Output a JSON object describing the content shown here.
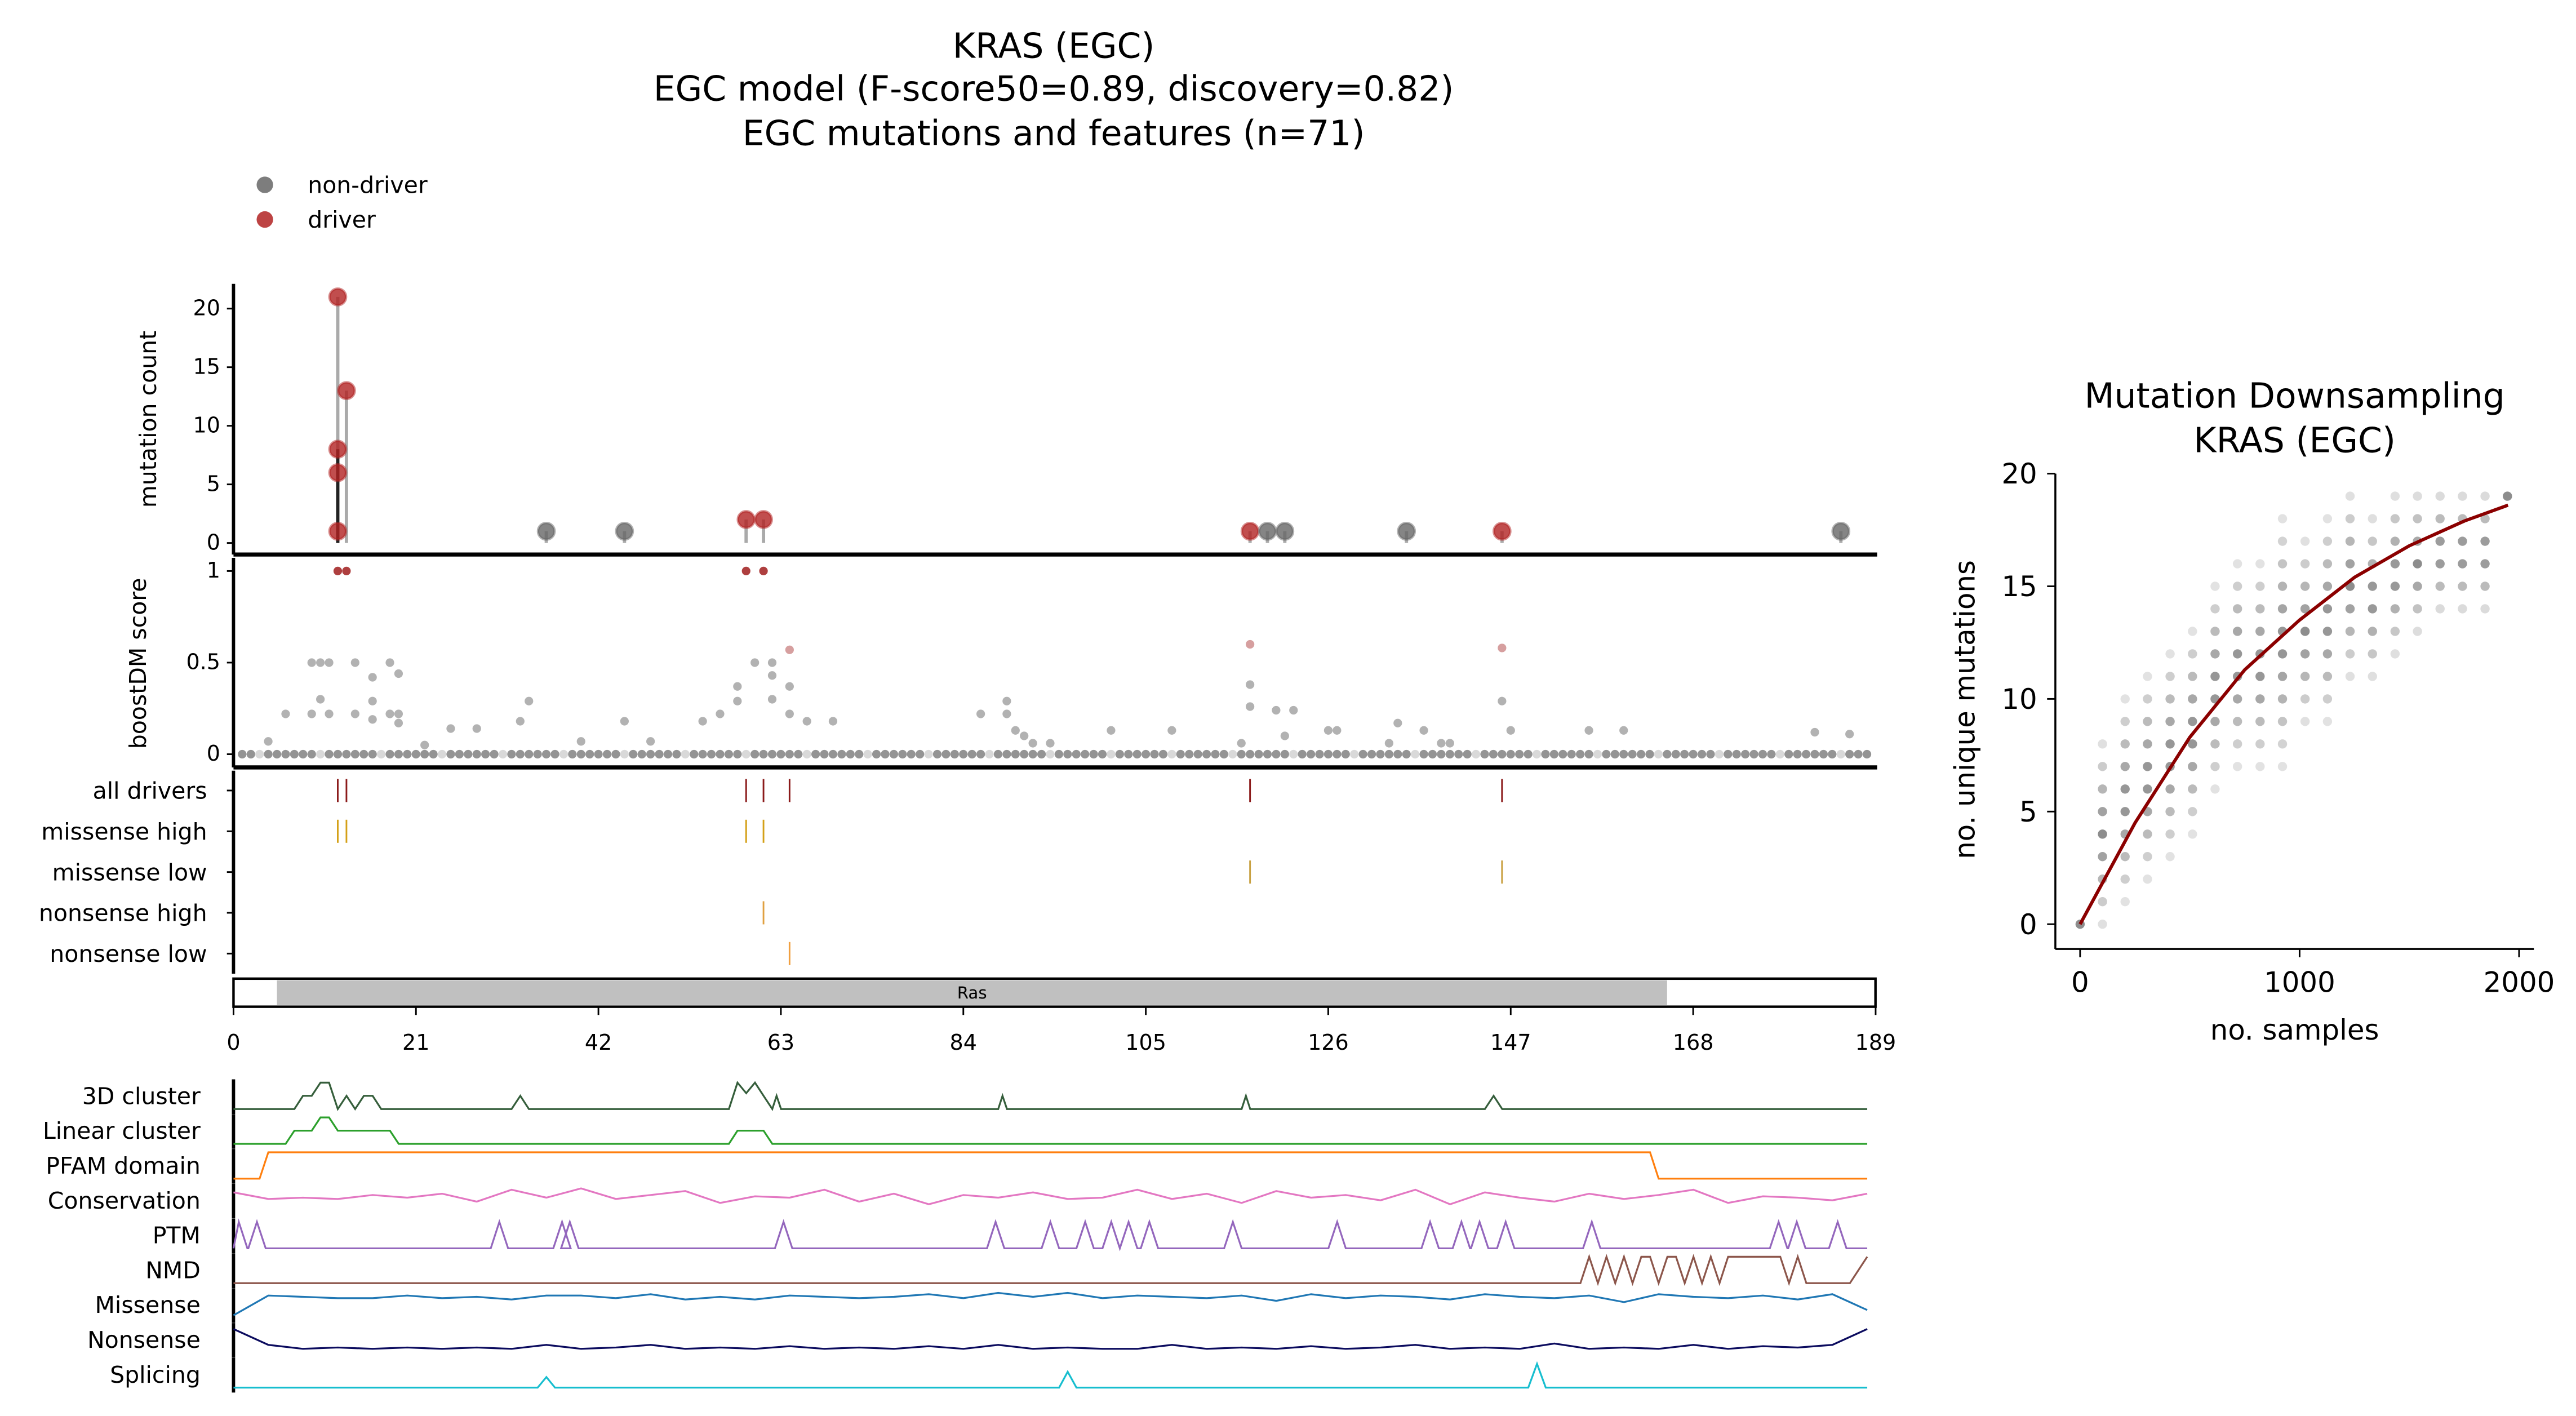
{
  "chart_data": [
    {
      "type": "scatter",
      "name": "lollipop",
      "title": [
        "KRAS (EGC)",
        "EGC model (F-score50=0.89, discovery=0.82)",
        "EGC mutations and features (n=71)"
      ],
      "legend": [
        {
          "label": "non-driver",
          "color": "#666666"
        },
        {
          "label": "driver",
          "color": "#b22222"
        }
      ],
      "legend_placement": "top-left",
      "ylabel": "mutation count",
      "ylim": [
        0,
        22
      ],
      "yticks": [
        0,
        5,
        10,
        15,
        20
      ],
      "xlim": [
        0,
        189
      ],
      "points": [
        {
          "pos": 12,
          "count": 21,
          "driver": true
        },
        {
          "pos": 12,
          "count": 8,
          "driver": true
        },
        {
          "pos": 12,
          "count": 6,
          "driver": true
        },
        {
          "pos": 12,
          "count": 1,
          "driver": true
        },
        {
          "pos": 13,
          "count": 13,
          "driver": true
        },
        {
          "pos": 36,
          "count": 1,
          "driver": false
        },
        {
          "pos": 45,
          "count": 1,
          "driver": false
        },
        {
          "pos": 59,
          "count": 2,
          "driver": true
        },
        {
          "pos": 61,
          "count": 2,
          "driver": true
        },
        {
          "pos": 117,
          "count": 1,
          "driver": true
        },
        {
          "pos": 119,
          "count": 1,
          "driver": false
        },
        {
          "pos": 121,
          "count": 1,
          "driver": false
        },
        {
          "pos": 135,
          "count": 1,
          "driver": false
        },
        {
          "pos": 146,
          "count": 1,
          "driver": true
        },
        {
          "pos": 185,
          "count": 1,
          "driver": false
        }
      ]
    },
    {
      "type": "scatter",
      "name": "boostdm",
      "ylabel": "boostDM score",
      "ylim": [
        0,
        1
      ],
      "yticks": [
        "0",
        "0.5",
        "1"
      ],
      "baseline_range": [
        1,
        188
      ],
      "points": [
        [
          12,
          1,
          1
        ],
        [
          13,
          1,
          1
        ],
        [
          59,
          1,
          1
        ],
        [
          61,
          1,
          1
        ],
        [
          4,
          0.07,
          0
        ],
        [
          6,
          0.22,
          0
        ],
        [
          9,
          0.5,
          0
        ],
        [
          10,
          0.5,
          0
        ],
        [
          11,
          0.5,
          0
        ],
        [
          10,
          0.3,
          0
        ],
        [
          9,
          0.22,
          0
        ],
        [
          11,
          0.22,
          0
        ],
        [
          14,
          0.5,
          0
        ],
        [
          14,
          0.22,
          0
        ],
        [
          16,
          0.42,
          0
        ],
        [
          16,
          0.29,
          0
        ],
        [
          16,
          0.19,
          0
        ],
        [
          18,
          0.5,
          0
        ],
        [
          18,
          0.22,
          0
        ],
        [
          19,
          0.44,
          0
        ],
        [
          19,
          0.22,
          0
        ],
        [
          19,
          0.17,
          0
        ],
        [
          22,
          0.05,
          0
        ],
        [
          25,
          0.14,
          0
        ],
        [
          28,
          0.14,
          0
        ],
        [
          33,
          0.18,
          0
        ],
        [
          34,
          0.29,
          0
        ],
        [
          40,
          0.07,
          0
        ],
        [
          45,
          0.18,
          0
        ],
        [
          48,
          0.07,
          0
        ],
        [
          54,
          0.18,
          0
        ],
        [
          56,
          0.22,
          0
        ],
        [
          58,
          0.37,
          0
        ],
        [
          58,
          0.29,
          0
        ],
        [
          60,
          0.5,
          0
        ],
        [
          62,
          0.5,
          0
        ],
        [
          62,
          0.43,
          0
        ],
        [
          62,
          0.3,
          0
        ],
        [
          64,
          0.57,
          1
        ],
        [
          64,
          0.37,
          0
        ],
        [
          64,
          0.22,
          0
        ],
        [
          66,
          0.18,
          0
        ],
        [
          69,
          0.18,
          0
        ],
        [
          86,
          0.22,
          0
        ],
        [
          89,
          0.29,
          0
        ],
        [
          89,
          0.22,
          0
        ],
        [
          90,
          0.13,
          0
        ],
        [
          91,
          0.1,
          0
        ],
        [
          92,
          0.06,
          0
        ],
        [
          94,
          0.06,
          0
        ],
        [
          101,
          0.13,
          0
        ],
        [
          108,
          0.13,
          0
        ],
        [
          116,
          0.06,
          0
        ],
        [
          117,
          0.6,
          1
        ],
        [
          117,
          0.38,
          0
        ],
        [
          117,
          0.26,
          0
        ],
        [
          120,
          0.24,
          0
        ],
        [
          122,
          0.24,
          0
        ],
        [
          121,
          0.1,
          0
        ],
        [
          126,
          0.13,
          0
        ],
        [
          127,
          0.13,
          0
        ],
        [
          133,
          0.06,
          0
        ],
        [
          134,
          0.17,
          0
        ],
        [
          137,
          0.13,
          0
        ],
        [
          139,
          0.06,
          0
        ],
        [
          140,
          0.06,
          0
        ],
        [
          146,
          0.58,
          1
        ],
        [
          146,
          0.29,
          0
        ],
        [
          147,
          0.13,
          0
        ],
        [
          156,
          0.13,
          0
        ],
        [
          160,
          0.13,
          0
        ],
        [
          182,
          0.12,
          0
        ],
        [
          186,
          0.11,
          0
        ]
      ]
    },
    {
      "type": "table",
      "name": "feature-ticks",
      "rows": [
        {
          "label": "all drivers",
          "color": "#8b1a1a",
          "positions": [
            12,
            13,
            59,
            61,
            64,
            117,
            146
          ]
        },
        {
          "label": "missense high",
          "color": "#d4a017",
          "positions": [
            12,
            13,
            59,
            61
          ]
        },
        {
          "label": "missense low",
          "color": "#c8a040",
          "positions": [
            117,
            146
          ]
        },
        {
          "label": "nonsense high",
          "color": "#e0a040",
          "positions": [
            61
          ]
        },
        {
          "label": "nonsense low",
          "color": "#f0a040",
          "positions": [
            64
          ]
        }
      ]
    },
    {
      "type": "bar",
      "name": "domains",
      "domains": [
        {
          "label": "Ras",
          "start": 5,
          "end": 165
        }
      ],
      "xticks": [
        0,
        21,
        42,
        63,
        84,
        105,
        126,
        147,
        168,
        189
      ]
    },
    {
      "type": "line",
      "name": "feature-tracks",
      "tracks": [
        {
          "label": "3D cluster",
          "color": "#355e3b",
          "points": [
            [
              0,
              0
            ],
            [
              7,
              0
            ],
            [
              8,
              0.5
            ],
            [
              9,
              0.5
            ],
            [
              10,
              1
            ],
            [
              11,
              1
            ],
            [
              12,
              0
            ],
            [
              13,
              0.5
            ],
            [
              14,
              0
            ],
            [
              15,
              0.5
            ],
            [
              16,
              0.5
            ],
            [
              17,
              0
            ],
            [
              32,
              0
            ],
            [
              33,
              0.5
            ],
            [
              34,
              0
            ],
            [
              57,
              0
            ],
            [
              58,
              1
            ],
            [
              59,
              0.6
            ],
            [
              60,
              1
            ],
            [
              61,
              0.5
            ],
            [
              62,
              0
            ],
            [
              62.5,
              0.5
            ],
            [
              63,
              0
            ],
            [
              88,
              0
            ],
            [
              88.5,
              0.5
            ],
            [
              89,
              0
            ],
            [
              116,
              0
            ],
            [
              116.5,
              0.5
            ],
            [
              117,
              0
            ],
            [
              144,
              0
            ],
            [
              145,
              0.5
            ],
            [
              146,
              0
            ],
            [
              188,
              0
            ]
          ]
        },
        {
          "label": "Linear cluster",
          "color": "#2ca02c",
          "points": [
            [
              0,
              0
            ],
            [
              6,
              0
            ],
            [
              7,
              0.5
            ],
            [
              9,
              0.5
            ],
            [
              10,
              1
            ],
            [
              11,
              1
            ],
            [
              12,
              0.5
            ],
            [
              18,
              0.5
            ],
            [
              19,
              0
            ],
            [
              57,
              0
            ],
            [
              58,
              0.5
            ],
            [
              61,
              0.5
            ],
            [
              62,
              0
            ],
            [
              188,
              0
            ]
          ]
        },
        {
          "label": "PFAM domain",
          "color": "#ff7f0e",
          "points": [
            [
              0,
              0
            ],
            [
              3,
              0
            ],
            [
              4,
              1
            ],
            [
              163,
              1
            ],
            [
              164,
              0
            ],
            [
              188,
              0
            ]
          ]
        },
        {
          "label": "Conservation",
          "color": "#e377c2",
          "series": [
            0.8,
            0.55,
            0.6,
            0.55,
            0.7,
            0.6,
            0.75,
            0.45,
            0.9,
            0.6,
            0.95,
            0.55,
            0.7,
            0.85,
            0.4,
            0.65,
            0.6,
            0.9,
            0.45,
            0.75,
            0.35,
            0.7,
            0.6,
            0.8,
            0.55,
            0.6,
            0.9,
            0.55,
            0.75,
            0.4,
            0.85,
            0.6,
            0.7,
            0.5,
            0.9,
            0.35,
            0.8,
            0.6,
            0.45,
            0.75,
            0.55,
            0.7,
            0.9,
            0.4,
            0.65,
            0.6,
            0.5,
            0.75
          ]
        },
        {
          "label": "PTM",
          "color": "#9467bd",
          "peaks": [
            0.6,
            2.7,
            30.6,
            37.8,
            38.7,
            63.3,
            87.7,
            94,
            98,
            101,
            103,
            105.4,
            115,
            127,
            137.7,
            141.3,
            143.4,
            146.4,
            156.3,
            177.8,
            179.9,
            184.6
          ]
        },
        {
          "label": "NMD",
          "color": "#8c564b",
          "points": [
            [
              0,
              0
            ],
            [
              155,
              0
            ],
            [
              156,
              1
            ],
            [
              157,
              0
            ],
            [
              158,
              1
            ],
            [
              159,
              0
            ],
            [
              160,
              1
            ],
            [
              161,
              0
            ],
            [
              162,
              1
            ],
            [
              163,
              1
            ],
            [
              164,
              0
            ],
            [
              165,
              1
            ],
            [
              166,
              1
            ],
            [
              167,
              0
            ],
            [
              168,
              1
            ],
            [
              169,
              0
            ],
            [
              170,
              1
            ],
            [
              171,
              0
            ],
            [
              172,
              1
            ],
            [
              178,
              1
            ],
            [
              179,
              0
            ],
            [
              180,
              1
            ],
            [
              181,
              0
            ],
            [
              186,
              0
            ],
            [
              188,
              1
            ]
          ]
        },
        {
          "label": "Missense",
          "color": "#1f77b4",
          "series": [
            0.1,
            0.85,
            0.8,
            0.75,
            0.75,
            0.85,
            0.75,
            0.8,
            0.7,
            0.85,
            0.85,
            0.75,
            0.9,
            0.7,
            0.8,
            0.7,
            0.85,
            0.8,
            0.75,
            0.8,
            0.9,
            0.75,
            0.95,
            0.8,
            0.95,
            0.75,
            0.85,
            0.8,
            0.75,
            0.85,
            0.65,
            0.9,
            0.75,
            0.85,
            0.8,
            0.7,
            0.9,
            0.8,
            0.75,
            0.85,
            0.6,
            0.9,
            0.8,
            0.75,
            0.85,
            0.7,
            0.9,
            0.3
          ]
        },
        {
          "label": "Nonsense",
          "color": "#0b0b5e",
          "series": [
            0.9,
            0.3,
            0.15,
            0.2,
            0.15,
            0.2,
            0.15,
            0.2,
            0.15,
            0.3,
            0.15,
            0.2,
            0.3,
            0.15,
            0.2,
            0.15,
            0.25,
            0.15,
            0.2,
            0.15,
            0.25,
            0.15,
            0.3,
            0.15,
            0.2,
            0.15,
            0.15,
            0.3,
            0.15,
            0.2,
            0.15,
            0.25,
            0.15,
            0.2,
            0.3,
            0.15,
            0.2,
            0.15,
            0.35,
            0.15,
            0.2,
            0.15,
            0.3,
            0.15,
            0.25,
            0.2,
            0.3,
            0.9
          ]
        },
        {
          "label": "Splicing",
          "color": "#17becf",
          "peaks": [
            36,
            96,
            150
          ],
          "peak_heights": [
            0.4,
            0.6,
            0.9
          ]
        }
      ]
    },
    {
      "type": "scatter",
      "name": "downsampling",
      "title": [
        "Mutation Downsampling",
        "KRAS (EGC)"
      ],
      "xlabel": "no. samples",
      "ylabel": "no. unique mutations",
      "xlim": [
        -100,
        2050
      ],
      "ylim": [
        -1,
        20
      ],
      "xticks": [
        0,
        1000,
        2000
      ],
      "yticks": [
        0,
        5,
        10,
        15,
        20
      ],
      "columns": [
        [
          0,
          0,
          0
        ],
        [
          102,
          0,
          8
        ],
        [
          205,
          1,
          10
        ],
        [
          307,
          2,
          11
        ],
        [
          410,
          3,
          12
        ],
        [
          512,
          4,
          13
        ],
        [
          615,
          6,
          15
        ],
        [
          717,
          7,
          16
        ],
        [
          820,
          7,
          16
        ],
        [
          922,
          7,
          18
        ],
        [
          1025,
          9,
          17
        ],
        [
          1127,
          9,
          18
        ],
        [
          1230,
          11,
          19
        ],
        [
          1332,
          11,
          18
        ],
        [
          1435,
          12,
          19
        ],
        [
          1537,
          13,
          19
        ],
        [
          1640,
          14,
          19
        ],
        [
          1742,
          14,
          19
        ],
        [
          1845,
          14,
          19
        ],
        [
          1947,
          19,
          19
        ]
      ],
      "fit_curve": [
        [
          0,
          0
        ],
        [
          250,
          4.5
        ],
        [
          500,
          8.3
        ],
        [
          750,
          11.3
        ],
        [
          1000,
          13.5
        ],
        [
          1250,
          15.4
        ],
        [
          1500,
          16.8
        ],
        [
          1750,
          17.9
        ],
        [
          1950,
          18.6
        ]
      ],
      "fit_color": "#8b0000"
    }
  ]
}
